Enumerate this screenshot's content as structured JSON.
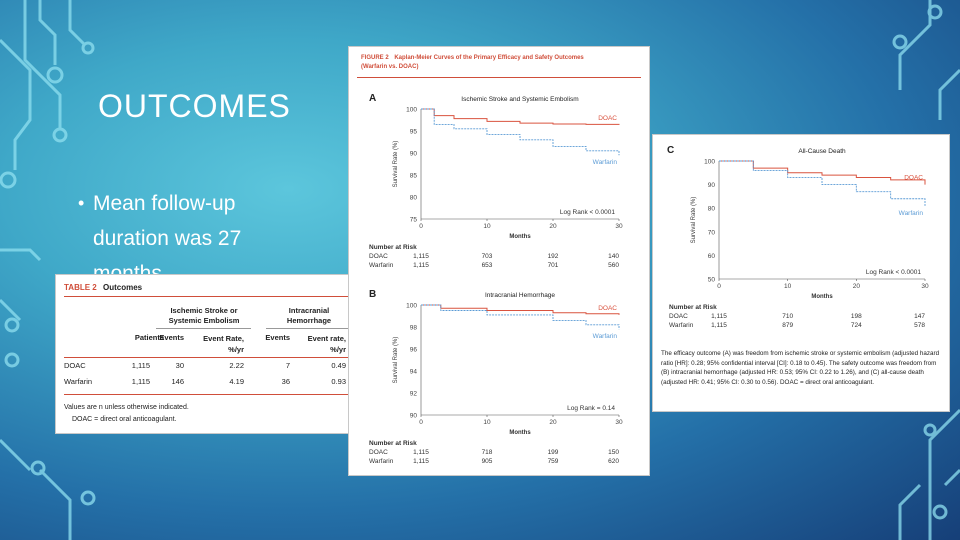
{
  "slide": {
    "title": "OUTCOMES",
    "bullet": "Mean follow-up duration was 27 months"
  },
  "table2": {
    "label": "TABLE 2",
    "name": "Outcomes",
    "group1": "Ischemic Stroke or Systemic Embolism",
    "group2": "Intracranial Hemorrhage",
    "headers": [
      "Patients",
      "Events",
      "Event Rate, %/yr",
      "Events",
      "Event rate, %/yr"
    ],
    "rows": [
      {
        "name": "DOAC",
        "values": [
          "1,115",
          "30",
          "2.22",
          "7",
          "0.49"
        ]
      },
      {
        "name": "Warfarin",
        "values": [
          "1,115",
          "146",
          "4.19",
          "36",
          "0.93"
        ]
      }
    ],
    "note1": "Values are n unless otherwise indicated.",
    "note2": "DOAC = direct oral anticoagulant."
  },
  "figure2": {
    "label": "FIGURE 2",
    "title": "Kaplan-Meier Curves of the Primary Efficacy and Safety Outcomes",
    "subtitle": "(Warfarin vs. DOAC)"
  },
  "panels": {
    "A": {
      "letter": "A",
      "title": "Ischemic Stroke and Systemic Embolism",
      "ylabel": "Survival Rate (%)",
      "xlabel": "Months",
      "yticks": [
        "100",
        "95",
        "90",
        "85",
        "80",
        "75"
      ],
      "xticks": [
        "0",
        "10",
        "20",
        "30"
      ],
      "logrank": "Log Rank < 0.0001",
      "risk_title": "Number at Risk",
      "risk": [
        {
          "name": "DOAC",
          "values": [
            "1,115",
            "703",
            "192",
            "140"
          ]
        },
        {
          "name": "Warfarin",
          "values": [
            "1,115",
            "653",
            "701",
            "560"
          ]
        }
      ]
    },
    "B": {
      "letter": "B",
      "title": "Intracranial Hemorrhage",
      "ylabel": "Survival Rate (%)",
      "xlabel": "Months",
      "yticks": [
        "100",
        "98",
        "96",
        "94",
        "92",
        "90"
      ],
      "xticks": [
        "0",
        "10",
        "20",
        "30"
      ],
      "logrank": "Log Rank = 0.14",
      "risk_title": "Number at Risk",
      "risk": [
        {
          "name": "DOAC",
          "values": [
            "1,115",
            "718",
            "199",
            "150"
          ]
        },
        {
          "name": "Warfarin",
          "values": [
            "1,115",
            "905",
            "759",
            "620"
          ]
        }
      ]
    },
    "C": {
      "letter": "C",
      "title": "All-Cause Death",
      "ylabel": "Survival Rate (%)",
      "xlabel": "Months",
      "yticks": [
        "100",
        "90",
        "80",
        "70",
        "60",
        "50"
      ],
      "xticks": [
        "0",
        "10",
        "20",
        "30"
      ],
      "logrank": "Log Rank < 0.0001",
      "risk_title": "Number at Risk",
      "risk": [
        {
          "name": "DOAC",
          "values": [
            "1,115",
            "710",
            "198",
            "147"
          ]
        },
        {
          "name": "Warfarin",
          "values": [
            "1,115",
            "879",
            "724",
            "578"
          ]
        }
      ],
      "caption": "The efficacy outcome (A) was freedom from ischemic stroke or systemic embolism (adjusted hazard ratio [HR]: 0.28; 95% confidential interval [CI]: 0.18 to 0.45). The safety outcome was freedom from (B) intracranial hemorrhage (adjusted HR: 0.53; 95% CI: 0.22 to 1.26), and (C) all-cause death (adjusted HR: 0.41; 95% CI: 0.30 to 0.56). DOAC = direct oral anticoagulant."
    }
  },
  "series": {
    "doac": "DOAC",
    "warfarin": "Warfarin"
  },
  "colors": {
    "doac": "#d9533f",
    "warfarin": "#5b9bd5",
    "accent": "#d04e3a"
  },
  "chart_data": [
    {
      "type": "line",
      "title": "Ischemic Stroke and Systemic Embolism",
      "xlabel": "Months",
      "ylabel": "Survival Rate (%)",
      "xlim": [
        0,
        30
      ],
      "ylim": [
        75,
        100
      ],
      "series": [
        {
          "name": "DOAC",
          "x": [
            0,
            2,
            5,
            10,
            15,
            20,
            25,
            30
          ],
          "y": [
            100,
            98.5,
            97.8,
            97.2,
            96.8,
            96.6,
            96.5,
            96.4
          ]
        },
        {
          "name": "Warfarin",
          "x": [
            0,
            2,
            5,
            10,
            15,
            20,
            25,
            30
          ],
          "y": [
            100,
            96.5,
            95.5,
            94.2,
            93,
            91.5,
            90.5,
            89.5
          ]
        }
      ]
    },
    {
      "type": "line",
      "title": "Intracranial Hemorrhage",
      "xlabel": "Months",
      "ylabel": "Survival Rate (%)",
      "xlim": [
        0,
        30
      ],
      "ylim": [
        90,
        100
      ],
      "series": [
        {
          "name": "DOAC",
          "x": [
            0,
            3,
            10,
            20,
            25,
            30
          ],
          "y": [
            100,
            99.7,
            99.5,
            99.3,
            99.2,
            99.1
          ]
        },
        {
          "name": "Warfarin",
          "x": [
            0,
            3,
            10,
            20,
            25,
            30
          ],
          "y": [
            100,
            99.5,
            99.1,
            98.6,
            98.2,
            97.8
          ]
        }
      ]
    },
    {
      "type": "line",
      "title": "All-Cause Death",
      "xlabel": "Months",
      "ylabel": "Survival Rate (%)",
      "xlim": [
        0,
        30
      ],
      "ylim": [
        50,
        100
      ],
      "series": [
        {
          "name": "DOAC",
          "x": [
            0,
            5,
            10,
            15,
            20,
            25,
            30
          ],
          "y": [
            100,
            97,
            95,
            94,
            93,
            92,
            90
          ]
        },
        {
          "name": "Warfarin",
          "x": [
            0,
            5,
            10,
            15,
            20,
            25,
            30
          ],
          "y": [
            100,
            96,
            93,
            90,
            87,
            84,
            81
          ]
        }
      ]
    }
  ]
}
